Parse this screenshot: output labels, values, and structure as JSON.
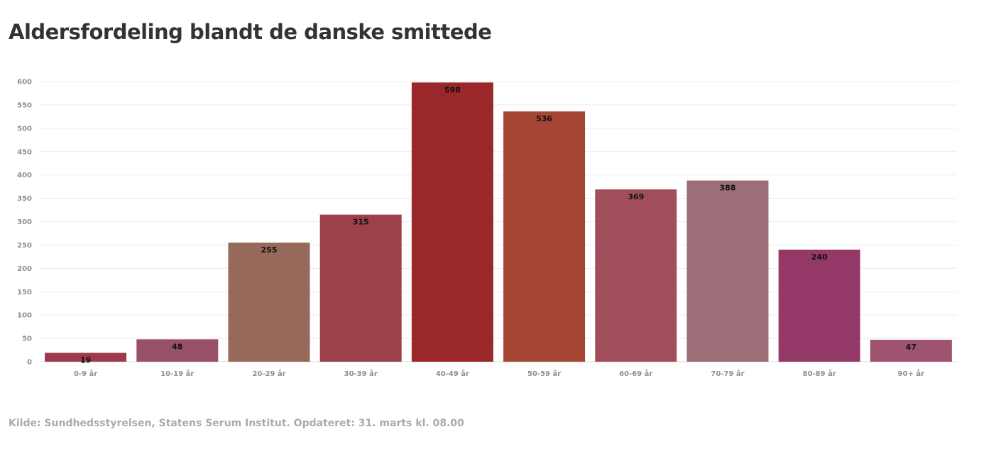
{
  "title": "Aldersfordeling blandt de danske smittede",
  "footer": "Kilde: Sundhedsstyrelsen, Statens Serum Institut. Opdateret: 31. marts kl. 08.00",
  "chart_data": {
    "type": "bar",
    "title": "Aldersfordeling blandt de danske smittede",
    "xlabel": "",
    "ylabel": "",
    "categories": [
      "0-9 år",
      "10-19 år",
      "20-29 år",
      "30-39 år",
      "40-49 år",
      "50-59 år",
      "60-69 år",
      "70-79 år",
      "80-89 år",
      "90+ år"
    ],
    "values": [
      19,
      48,
      255,
      315,
      598,
      536,
      369,
      388,
      240,
      47
    ],
    "colors": [
      "#9e3a4e",
      "#985068",
      "#96695a",
      "#9c404a",
      "#9a282a",
      "#a64634",
      "#a04e5c",
      "#9e6e78",
      "#943868",
      "#9e5470"
    ],
    "ylim": [
      0,
      600
    ],
    "yticks": [
      0,
      50,
      100,
      150,
      200,
      250,
      300,
      350,
      400,
      450,
      500,
      550,
      600
    ],
    "grid": true,
    "legend": "none",
    "data_labels": true
  }
}
